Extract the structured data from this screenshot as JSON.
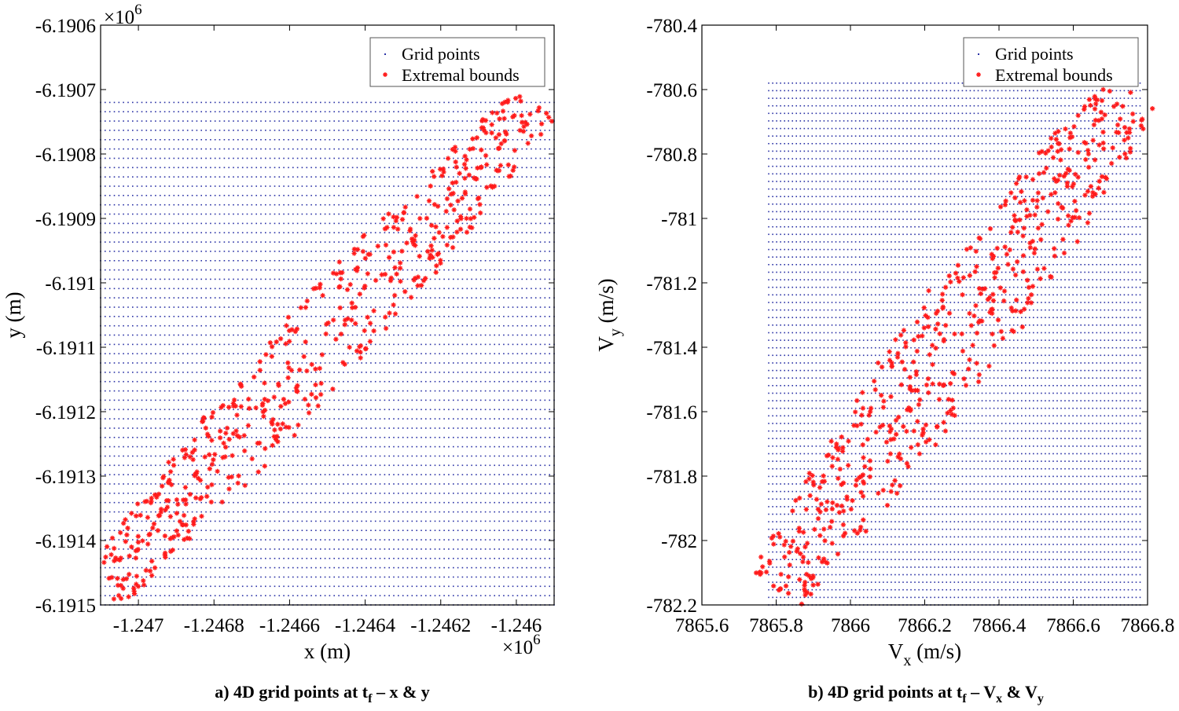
{
  "chart_data": [
    {
      "type": "scatter",
      "caption": {
        "pre": "a) 4D grid points at t",
        "sub1": "f",
        "mid": " – x & y",
        "sub2": "",
        "post": ""
      },
      "xlabel": {
        "text": "x (m)",
        "sub": ""
      },
      "ylabel": {
        "text": "y (m)",
        "sub": ""
      },
      "xlim": [
        -1.2471,
        -1.2459
      ],
      "ylim": [
        -6.1915,
        -6.1906
      ],
      "xticks": [
        -1.247,
        -1.2468,
        -1.2466,
        -1.2464,
        -1.2462,
        -1.246
      ],
      "xtick_labels": [
        "-1.247",
        "-1.2468",
        "-1.2466",
        "-1.2464",
        "-1.2462",
        "-1.246"
      ],
      "yticks": [
        -6.1906,
        -6.1907,
        -6.1908,
        -6.1909,
        -6.191,
        -6.1911,
        -6.1912,
        -6.1913,
        -6.1914,
        -6.1915
      ],
      "ytick_labels": [
        "-6.1906",
        "-6.1907",
        "-6.1908",
        "-6.1909",
        "-6.191",
        "-6.1911",
        "-6.1912",
        "-6.1913",
        "-6.1914",
        "-6.1915"
      ],
      "x_exponent": "×10",
      "x_exponent_power": "6",
      "y_exponent": "×10",
      "y_exponent_power": "6",
      "grid_points": {
        "x_range": [
          -1.2471,
          -1.2459
        ],
        "y_range": [
          -6.1915,
          -6.19072
        ],
        "nx": 100,
        "ny": 55
      },
      "extremal": {
        "band_start": [
          -1.2471,
          -6.19148
        ],
        "band_end": [
          -1.24595,
          -6.19072
        ],
        "half_width": 7.5e-05,
        "count": 560,
        "seed": 7
      },
      "series": [
        {
          "name": "Grid points",
          "color": "#2b33a6",
          "marker": "dot"
        },
        {
          "name": "Extremal bounds",
          "color": "#ff1a1a",
          "marker": "star"
        }
      ],
      "legend_position": "top-right"
    },
    {
      "type": "scatter",
      "caption": {
        "pre": "b) 4D grid points at t",
        "sub1": "f",
        "mid": " – V",
        "sub2": "x",
        "post": " & V",
        "sub3": "y"
      },
      "xlabel": {
        "text": "V",
        "sub": "x",
        "post": " (m/s)"
      },
      "ylabel": {
        "text": "V",
        "sub": "y",
        "post": " (m/s)"
      },
      "xlim": [
        7865.6,
        7866.8
      ],
      "ylim": [
        -782.2,
        -780.4
      ],
      "xticks": [
        7865.6,
        7865.8,
        7866,
        7866.2,
        7866.4,
        7866.6,
        7866.8
      ],
      "xtick_labels": [
        "7865.6",
        "7865.8",
        "7866",
        "7866.2",
        "7866.4",
        "7866.6",
        "7866.8"
      ],
      "yticks": [
        -780.4,
        -780.6,
        -780.8,
        -781,
        -781.2,
        -781.4,
        -781.6,
        -781.8,
        -782,
        -782.2
      ],
      "ytick_labels": [
        "-780.4",
        "-780.6",
        "-780.8",
        "-781",
        "-781.2",
        "-781.4",
        "-781.6",
        "-781.8",
        "-782",
        "-782.2"
      ],
      "grid_points": {
        "x_range": [
          7865.78,
          7866.78
        ],
        "y_range": [
          -782.2,
          -780.58
        ],
        "nx": 95,
        "ny": 70
      },
      "extremal": {
        "band_start": [
          7865.8,
          -782.15
        ],
        "band_end": [
          7866.76,
          -780.6
        ],
        "half_width": 0.09,
        "count": 560,
        "seed": 13
      },
      "series": [
        {
          "name": "Grid points",
          "color": "#2b33a6",
          "marker": "dot"
        },
        {
          "name": "Extremal bounds",
          "color": "#ff1a1a",
          "marker": "star"
        }
      ],
      "legend_position": "top-right"
    }
  ]
}
